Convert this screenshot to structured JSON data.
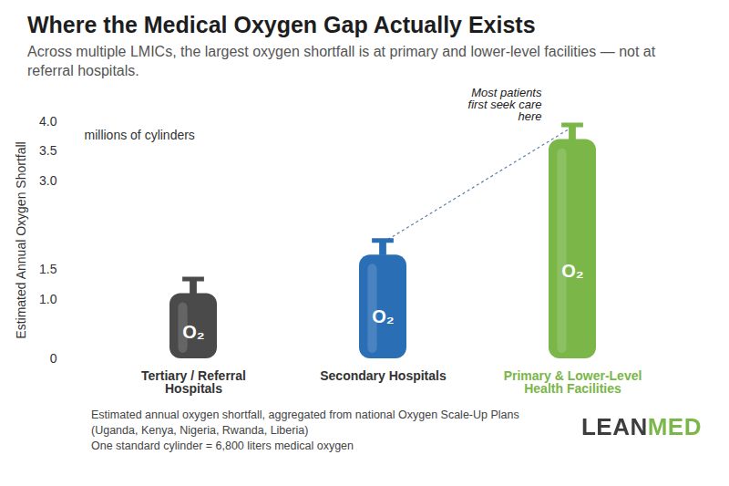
{
  "chart_data": {
    "type": "bar",
    "title": "Where the Medical Oxygen Gap Actually Exists",
    "subtitle": "Across multiple LMICs, the largest oxygen shortfall is at primary and lower-level facilities — not at referral hospitals.",
    "ylabel": "Estimated Annual Oxygen Shortfall",
    "unit_label": "millions of cylinders",
    "categories": [
      "Tertiary / Referral Hospitals",
      "Secondary Hospitals",
      "Primary & Lower-Level Health Facilities"
    ],
    "values": [
      1.1,
      1.75,
      3.7
    ],
    "colors": [
      "#4a4a4a",
      "#2a6fb5",
      "#7ab648"
    ],
    "cylinder_label": "O₂",
    "annotation": {
      "text": "Most patients first seek care here",
      "from_category": "Secondary Hospitals",
      "category": "Primary & Lower-Level Health Facilities"
    },
    "ylim": [
      0,
      4
    ],
    "yticks": [
      0,
      {
        "value": 1,
        "label": "1.0"
      },
      1.5,
      {
        "value": 3,
        "label": "3.0"
      },
      3.5,
      {
        "value": 4,
        "label": "4.0"
      }
    ],
    "grid": false,
    "caption": [
      "Estimated annual oxygen shortfall, aggregated from national Oxygen Scale-Up Plans",
      "(Uganda, Kenya, Nigeria, Rwanda, Liberia)",
      "One standard cylinder = 6,800 liters medical oxygen"
    ],
    "logo": "LEANMED"
  }
}
